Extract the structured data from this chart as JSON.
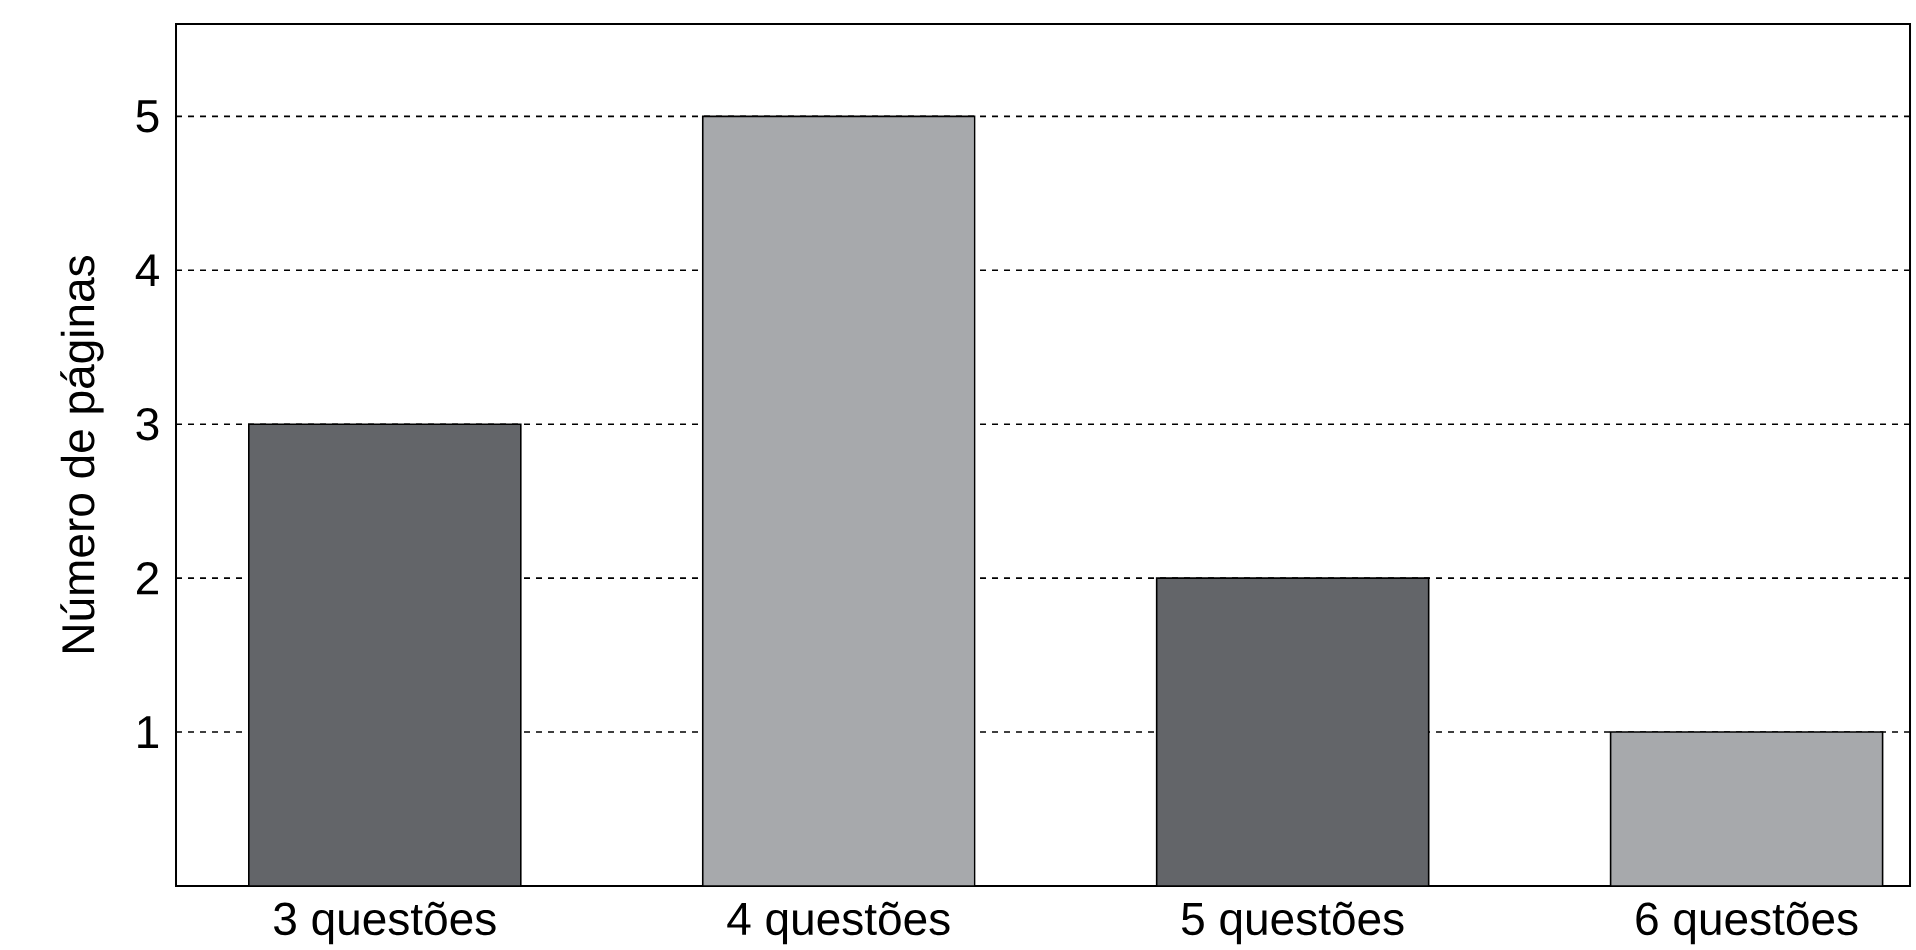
{
  "chart_data": {
    "type": "bar",
    "ylabel": "Número de páginas",
    "categories": [
      "3 questões",
      "4 questões",
      "5 questões",
      "6 questões"
    ],
    "values": [
      3,
      5,
      2,
      1
    ],
    "colors": [
      "#636569",
      "#a7a9ac",
      "#636569",
      "#a7a9ac"
    ],
    "ylim": [
      0,
      5.6
    ],
    "yticks": [
      1,
      2,
      3,
      4,
      5
    ],
    "grid": "y"
  }
}
